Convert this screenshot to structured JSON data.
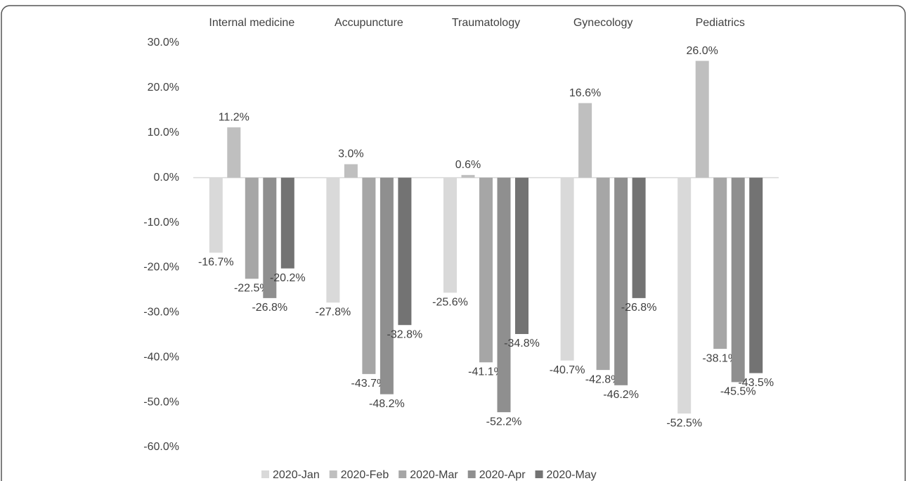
{
  "chart_data": {
    "type": "bar",
    "categories": [
      "Internal medicine",
      "Accupuncture",
      "Traumatology",
      "Gynecology",
      "Pediatrics"
    ],
    "series": [
      {
        "name": "2020-Jan",
        "color": "#d9d9d9",
        "values": [
          -16.7,
          -27.8,
          -25.6,
          -40.7,
          -52.5
        ],
        "value_labels": [
          "-16.7%",
          "-27.8%",
          "-25.6%",
          "-40.7%",
          "-52.5%"
        ]
      },
      {
        "name": "2020-Feb",
        "color": "#bfbfbf",
        "values": [
          11.2,
          3.0,
          0.6,
          16.6,
          26.0
        ],
        "value_labels": [
          "11.2%",
          "3.0%",
          "0.6%",
          "16.6%",
          "26.0%"
        ]
      },
      {
        "name": "2020-Mar",
        "color": "#a6a6a6",
        "values": [
          -22.5,
          -43.7,
          -41.1,
          -42.8,
          -38.1
        ],
        "value_labels": [
          "-22.5%",
          "-43.7%",
          "-41.1%",
          "-42.8%",
          "-38.1%"
        ]
      },
      {
        "name": "2020-Apr",
        "color": "#8f8f8f",
        "values": [
          -26.8,
          -48.2,
          -52.2,
          -46.2,
          -45.5
        ],
        "value_labels": [
          "-26.8%",
          "-48.2%",
          "-52.2%",
          "-46.2%",
          "-45.5%"
        ]
      },
      {
        "name": "2020-May",
        "color": "#737373",
        "values": [
          -20.2,
          -32.8,
          -34.8,
          -26.8,
          -43.5
        ],
        "value_labels": [
          "-20.2%",
          "-32.8%",
          "-34.8%",
          "-26.8%",
          "-43.5%"
        ]
      }
    ],
    "ylim": [
      -60,
      30
    ],
    "yticks": [
      {
        "value": 30,
        "label": "30.0%"
      },
      {
        "value": 20,
        "label": "20.0%"
      },
      {
        "value": 10,
        "label": "10.0%"
      },
      {
        "value": 0,
        "label": "0.0%"
      },
      {
        "value": -10,
        "label": "-10.0%"
      },
      {
        "value": -20,
        "label": "-20.0%"
      },
      {
        "value": -30,
        "label": "-30.0%"
      },
      {
        "value": -40,
        "label": "-40.0%"
      },
      {
        "value": -50,
        "label": "-50.0%"
      },
      {
        "value": -60,
        "label": "-60.0%"
      }
    ],
    "grid": false,
    "legend": "bottom"
  }
}
